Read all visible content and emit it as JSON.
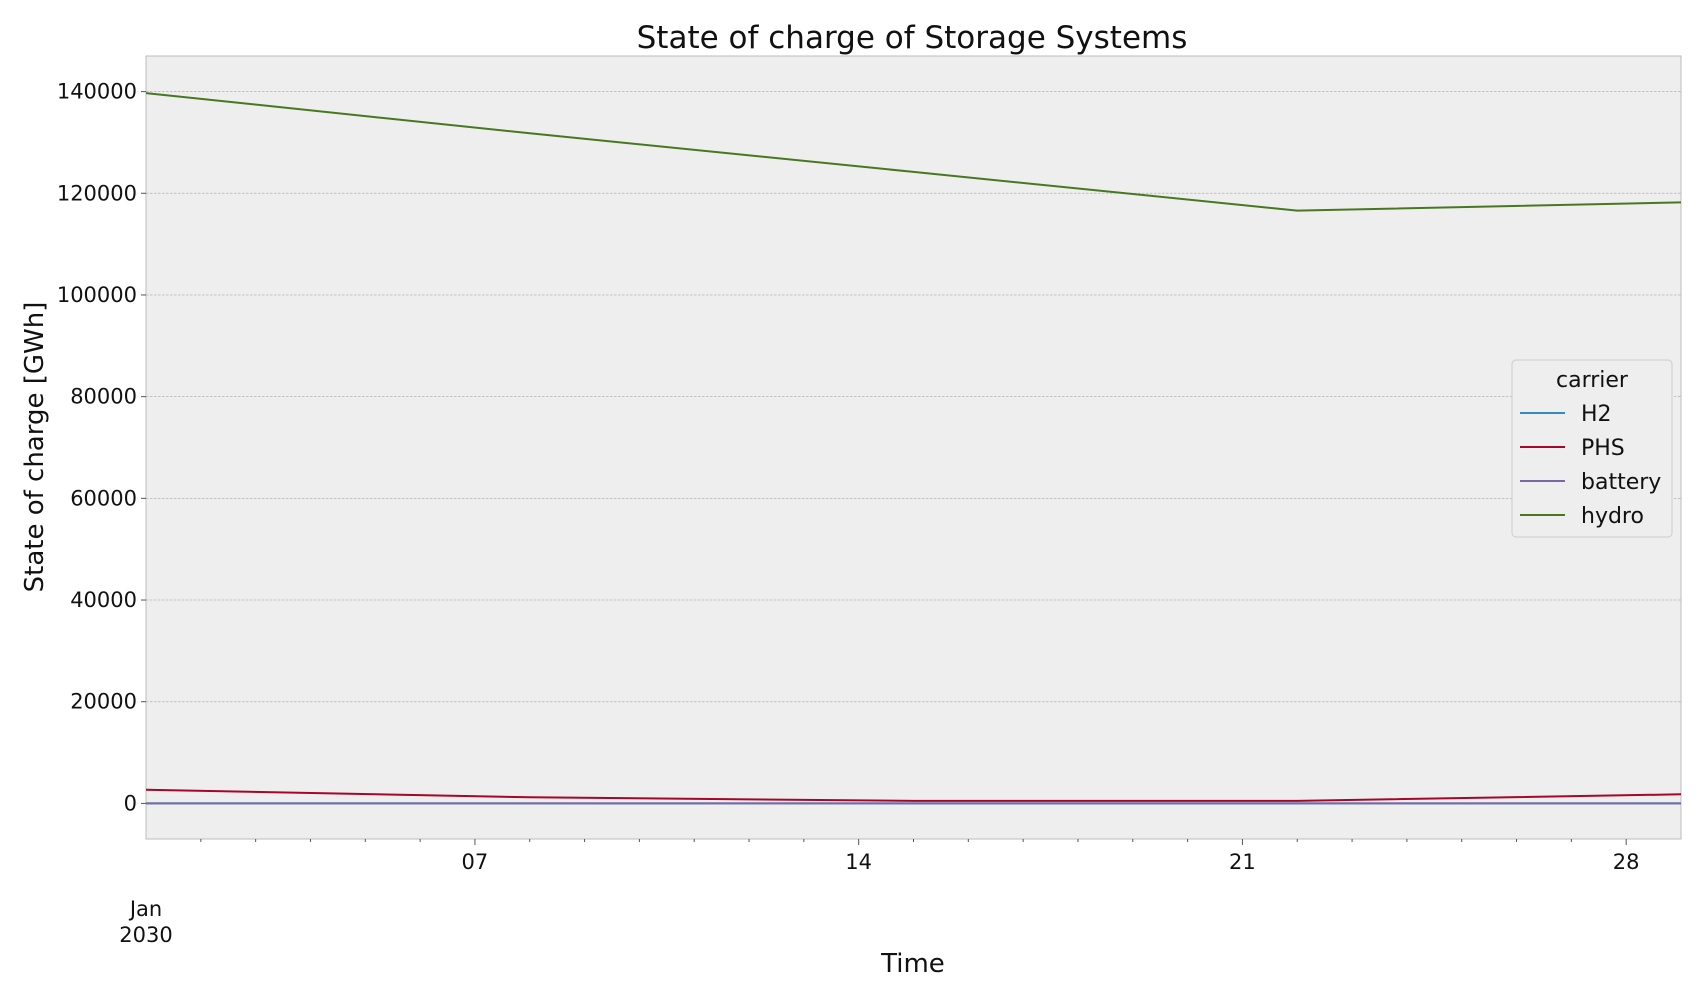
{
  "chart_data": {
    "type": "line",
    "title": "State of charge of Storage Systems",
    "xlabel": "Time",
    "ylabel": "State of charge [GWh]",
    "x_start_label": [
      "Jan",
      "2030"
    ],
    "x_range_days": [
      1,
      29
    ],
    "x_major_ticks": [
      {
        "day": 7,
        "label": "07"
      },
      {
        "day": 14,
        "label": "14"
      },
      {
        "day": 21,
        "label": "21"
      },
      {
        "day": 28,
        "label": "28"
      }
    ],
    "ylim": [
      -7000,
      147000
    ],
    "y_ticks": [
      0,
      20000,
      40000,
      60000,
      80000,
      100000,
      120000,
      140000
    ],
    "y_tick_labels": [
      "0",
      "20000",
      "40000",
      "60000",
      "80000",
      "100000",
      "120000",
      "140000"
    ],
    "grid": true,
    "legend": {
      "title": "carrier",
      "position": "center-right"
    },
    "x_days": [
      1,
      8,
      15,
      22,
      29
    ],
    "series": [
      {
        "name": "H2",
        "color": "#348ABD",
        "values": [
          0,
          0,
          0,
          0,
          0
        ]
      },
      {
        "name": "PHS",
        "color": "#A60628",
        "values": [
          2700,
          1200,
          500,
          500,
          1800
        ]
      },
      {
        "name": "battery",
        "color": "#7A68A6",
        "values": [
          0,
          0,
          0,
          0,
          0
        ]
      },
      {
        "name": "hydro",
        "color": "#467821",
        "values": [
          139700,
          131800,
          124200,
          116600,
          118200
        ]
      }
    ]
  }
}
